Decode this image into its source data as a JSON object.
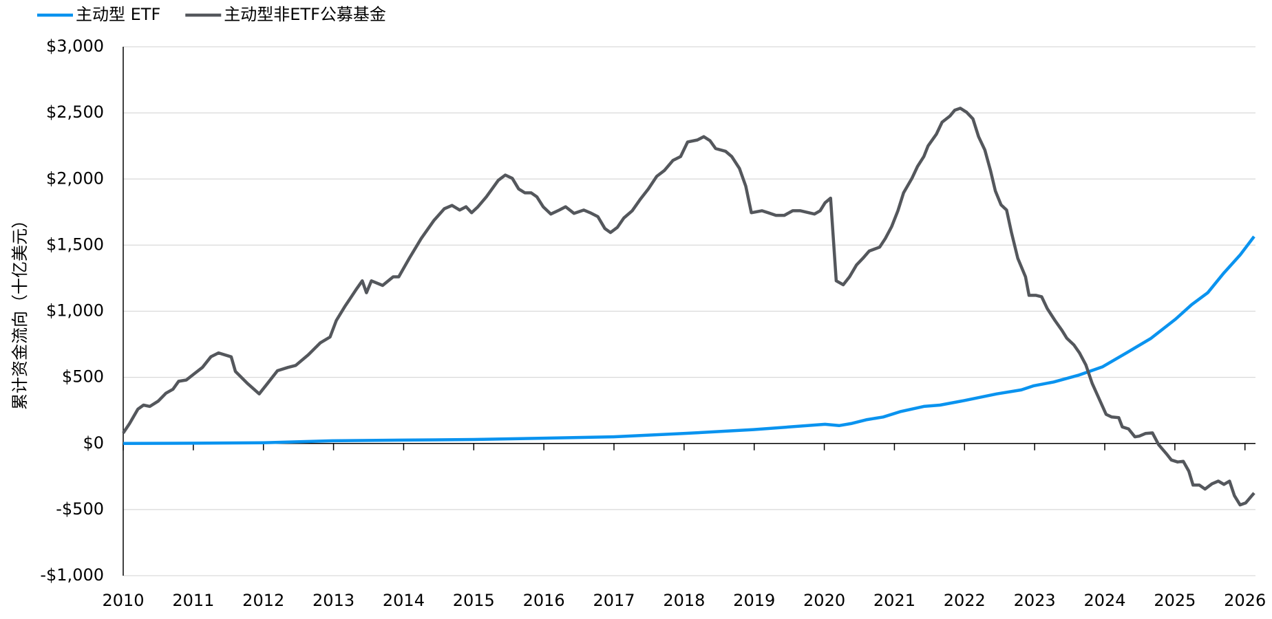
{
  "chart_data": {
    "type": "line",
    "y_label": "累计资金流向（十亿美元）",
    "xlim": [
      2010,
      2026.15
    ],
    "xticks": [
      2010,
      2011,
      2012,
      2013,
      2014,
      2015,
      2016,
      2017,
      2018,
      2019,
      2020,
      2021,
      2022,
      2023,
      2024,
      2025,
      2026
    ],
    "ylim": [
      -1000,
      3000
    ],
    "yticks": [
      {
        "value": -1000,
        "label": "-$1,000"
      },
      {
        "value": -500,
        "label": "-$500"
      },
      {
        "value": 0,
        "label": "$0"
      },
      {
        "value": 500,
        "label": "$500"
      },
      {
        "value": 1000,
        "label": "$1,000"
      },
      {
        "value": 1500,
        "label": "$1,500"
      },
      {
        "value": 2000,
        "label": "$2,000"
      },
      {
        "value": 2500,
        "label": "$2,500"
      },
      {
        "value": 3000,
        "label": "$3,000"
      }
    ],
    "grid": true,
    "legend": "top-left",
    "series": [
      {
        "name": "主动型 ETF",
        "color": "#0a93ef",
        "x": [
          2010,
          2011.02,
          2012.0,
          2012.98,
          2013.99,
          2015.0,
          2015.99,
          2016.99,
          2017.99,
          2018.99,
          2020.01,
          2020.21,
          2020.38,
          2020.61,
          2020.84,
          2021.08,
          2021.42,
          2021.65,
          2022.0,
          2022.46,
          2022.81,
          2022.98,
          2023.27,
          2023.62,
          2023.97,
          2024.31,
          2024.66,
          2025.01,
          2025.24,
          2025.47,
          2025.7,
          2025.93,
          2026.13
        ],
        "values": [
          0,
          2,
          5,
          20,
          25,
          30,
          40,
          50,
          75,
          105,
          145,
          135,
          150,
          180,
          200,
          240,
          280,
          290,
          325,
          375,
          405,
          435,
          465,
          515,
          580,
          685,
          795,
          940,
          1050,
          1140,
          1290,
          1425,
          1565
        ]
      },
      {
        "name": "主动型非ETF公募基金",
        "color": "#54575c",
        "x": [
          2010.0,
          2010.09,
          2010.21,
          2010.29,
          2010.38,
          2010.5,
          2010.61,
          2010.71,
          2010.79,
          2010.9,
          2011.02,
          2011.13,
          2011.25,
          2011.36,
          2011.54,
          2011.6,
          2011.77,
          2011.94,
          2012.06,
          2012.2,
          2012.35,
          2012.46,
          2012.64,
          2012.81,
          2012.95,
          2013.04,
          2013.16,
          2013.33,
          2013.41,
          2013.47,
          2013.54,
          2013.7,
          2013.85,
          2013.93,
          2014.08,
          2014.25,
          2014.43,
          2014.58,
          2014.69,
          2014.8,
          2014.89,
          2014.97,
          2015.06,
          2015.18,
          2015.35,
          2015.45,
          2015.55,
          2015.64,
          2015.73,
          2015.82,
          2015.9,
          2015.99,
          2016.1,
          2016.22,
          2016.31,
          2016.43,
          2016.57,
          2016.66,
          2016.77,
          2016.87,
          2016.95,
          2017.05,
          2017.14,
          2017.26,
          2017.38,
          2017.49,
          2017.61,
          2017.72,
          2017.84,
          2017.95,
          2018.05,
          2018.19,
          2018.28,
          2018.37,
          2018.45,
          2018.59,
          2018.68,
          2018.79,
          2018.88,
          2018.96,
          2019.11,
          2019.2,
          2019.31,
          2019.43,
          2019.55,
          2019.66,
          2019.78,
          2019.86,
          2019.94,
          2020.01,
          2020.09,
          2020.17,
          2020.27,
          2020.36,
          2020.46,
          2020.55,
          2020.64,
          2020.79,
          2020.87,
          2020.96,
          2021.05,
          2021.13,
          2021.25,
          2021.33,
          2021.42,
          2021.48,
          2021.6,
          2021.68,
          2021.79,
          2021.86,
          2021.94,
          2022.03,
          2022.12,
          2022.2,
          2022.29,
          2022.37,
          2022.44,
          2022.52,
          2022.6,
          2022.67,
          2022.76,
          2022.87,
          2022.92,
          2023.02,
          2023.1,
          2023.18,
          2023.29,
          2023.39,
          2023.46,
          2023.56,
          2023.64,
          2023.73,
          2023.82,
          2023.91,
          2024.02,
          2024.1,
          2024.2,
          2024.25,
          2024.34,
          2024.43,
          2024.49,
          2024.58,
          2024.68,
          2024.77,
          2024.89,
          2024.95,
          2025.04,
          2025.12,
          2025.2,
          2025.26,
          2025.35,
          2025.43,
          2025.53,
          2025.62,
          2025.7,
          2025.78,
          2025.85,
          2025.93,
          2026.01,
          2026.13
        ],
        "values": [
          79,
          150,
          260,
          290,
          280,
          320,
          380,
          410,
          470,
          480,
          530,
          575,
          655,
          685,
          655,
          545,
          455,
          375,
          455,
          550,
          575,
          590,
          670,
          760,
          805,
          930,
          1035,
          1170,
          1230,
          1140,
          1230,
          1195,
          1260,
          1260,
          1400,
          1550,
          1685,
          1775,
          1800,
          1765,
          1790,
          1745,
          1790,
          1865,
          1990,
          2030,
          2005,
          1925,
          1895,
          1895,
          1865,
          1790,
          1735,
          1765,
          1790,
          1740,
          1765,
          1745,
          1715,
          1625,
          1595,
          1635,
          1705,
          1760,
          1850,
          1925,
          2020,
          2065,
          2140,
          2170,
          2280,
          2295,
          2320,
          2290,
          2230,
          2210,
          2170,
          2080,
          1945,
          1745,
          1760,
          1745,
          1725,
          1725,
          1760,
          1760,
          1745,
          1735,
          1760,
          1820,
          1855,
          1230,
          1200,
          1260,
          1350,
          1400,
          1455,
          1485,
          1550,
          1640,
          1760,
          1895,
          2005,
          2095,
          2170,
          2250,
          2340,
          2430,
          2475,
          2520,
          2535,
          2505,
          2455,
          2320,
          2220,
          2065,
          1910,
          1805,
          1765,
          1595,
          1400,
          1260,
          1120,
          1120,
          1110,
          1020,
          930,
          855,
          795,
          745,
          685,
          595,
          455,
          350,
          220,
          200,
          195,
          125,
          110,
          50,
          55,
          75,
          80,
          -10,
          -85,
          -125,
          -140,
          -135,
          -210,
          -315,
          -315,
          -345,
          -305,
          -285,
          -310,
          -285,
          -395,
          -465,
          -450,
          -375
        ]
      }
    ]
  }
}
